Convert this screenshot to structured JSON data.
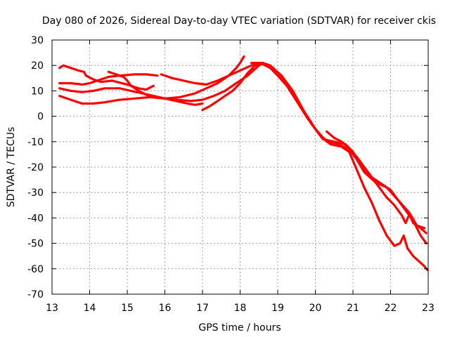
{
  "chart_data": {
    "type": "line",
    "title": "Day 080 of 2026, Sidereal Day-to-day VTEC variation (SDTVAR) for receiver ckis",
    "xlabel": "GPS time / hours",
    "ylabel": "SDTVAR / TECUs",
    "xlim": [
      13,
      23
    ],
    "ylim": [
      -70,
      30
    ],
    "xticks": [
      "13",
      "14",
      "15",
      "16",
      "17",
      "18",
      "19",
      "20",
      "21",
      "22",
      "23"
    ],
    "yticks": [
      "30",
      "20",
      "10",
      "0",
      "-10",
      "-20",
      "-30",
      "-40",
      "-50",
      "-60",
      "-70"
    ],
    "grid": true,
    "color": "#ff0000",
    "series": [
      {
        "name": "track-1",
        "points": [
          [
            13.2,
            19
          ],
          [
            13.3,
            20
          ],
          [
            13.5,
            19
          ],
          [
            13.7,
            18
          ],
          [
            13.85,
            17.5
          ],
          [
            13.9,
            16
          ],
          [
            14.1,
            14.5
          ],
          [
            14.3,
            13.5
          ],
          [
            14.6,
            14
          ],
          [
            15.0,
            12.5
          ],
          [
            15.3,
            11
          ],
          [
            15.5,
            10.5
          ],
          [
            15.7,
            12
          ]
        ]
      },
      {
        "name": "track-2",
        "points": [
          [
            13.2,
            13
          ],
          [
            13.5,
            13
          ],
          [
            13.8,
            12.5
          ],
          [
            14.0,
            13
          ],
          [
            14.3,
            14.5
          ],
          [
            14.5,
            15.5
          ],
          [
            14.8,
            16
          ],
          [
            15.2,
            16.5
          ],
          [
            15.5,
            16.5
          ],
          [
            15.8,
            16
          ]
        ]
      },
      {
        "name": "track-3",
        "points": [
          [
            13.2,
            11
          ],
          [
            13.5,
            10
          ],
          [
            13.8,
            9.5
          ],
          [
            14.1,
            10
          ],
          [
            14.4,
            11
          ],
          [
            14.8,
            11
          ],
          [
            15.1,
            10
          ],
          [
            15.4,
            9
          ],
          [
            15.7,
            8
          ],
          [
            16.0,
            7
          ],
          [
            16.3,
            6.5
          ],
          [
            16.7,
            6
          ],
          [
            17.0,
            6.5
          ],
          [
            17.3,
            8
          ],
          [
            17.6,
            10
          ],
          [
            17.9,
            13
          ],
          [
            18.2,
            16
          ],
          [
            18.5,
            20
          ]
        ]
      },
      {
        "name": "track-4",
        "points": [
          [
            13.2,
            8
          ],
          [
            13.5,
            6.5
          ],
          [
            13.8,
            5
          ],
          [
            14.1,
            5
          ],
          [
            14.4,
            5.5
          ],
          [
            14.8,
            6.5
          ],
          [
            15.2,
            7
          ],
          [
            15.6,
            7.5
          ],
          [
            16.0,
            7
          ],
          [
            16.4,
            7.5
          ],
          [
            16.8,
            9
          ],
          [
            17.1,
            11
          ],
          [
            17.4,
            13
          ],
          [
            17.7,
            16
          ],
          [
            17.9,
            19
          ],
          [
            18.0,
            21
          ],
          [
            18.1,
            23.5
          ]
        ]
      },
      {
        "name": "track-5",
        "points": [
          [
            14.5,
            17.5
          ],
          [
            14.7,
            16.5
          ],
          [
            14.9,
            15.5
          ],
          [
            15.0,
            14
          ],
          [
            15.1,
            12
          ],
          [
            15.3,
            10
          ],
          [
            15.5,
            8.5
          ],
          [
            15.7,
            7.5
          ],
          [
            16.0,
            7
          ],
          [
            16.3,
            6
          ],
          [
            16.6,
            5
          ],
          [
            16.8,
            4.5
          ],
          [
            17.0,
            5
          ]
        ]
      },
      {
        "name": "track-6",
        "points": [
          [
            15.9,
            16.5
          ],
          [
            16.2,
            15
          ],
          [
            16.5,
            14
          ],
          [
            16.8,
            13
          ],
          [
            17.1,
            12.5
          ],
          [
            17.4,
            14
          ],
          [
            17.7,
            16
          ],
          [
            18.0,
            18
          ],
          [
            18.3,
            20
          ],
          [
            18.6,
            21
          ],
          [
            18.8,
            20
          ],
          [
            19.1,
            16
          ],
          [
            19.4,
            10
          ],
          [
            19.7,
            2
          ],
          [
            20.0,
            -5
          ],
          [
            20.3,
            -10
          ],
          [
            20.6,
            -11
          ],
          [
            20.9,
            -13
          ],
          [
            21.1,
            -17
          ],
          [
            21.3,
            -22
          ],
          [
            21.6,
            -26
          ],
          [
            21.9,
            -28
          ],
          [
            22.2,
            -33
          ],
          [
            22.5,
            -38
          ],
          [
            22.7,
            -43
          ],
          [
            22.9,
            -44
          ]
        ]
      },
      {
        "name": "track-7",
        "points": [
          [
            17.0,
            2.5
          ],
          [
            17.2,
            4
          ],
          [
            17.4,
            6
          ],
          [
            17.6,
            8
          ],
          [
            17.8,
            10
          ],
          [
            18.0,
            13
          ],
          [
            18.2,
            17
          ],
          [
            18.4,
            20
          ],
          [
            18.6,
            20.5
          ],
          [
            18.8,
            19
          ],
          [
            19.0,
            16
          ],
          [
            19.3,
            11
          ],
          [
            19.6,
            4
          ],
          [
            19.9,
            -3
          ],
          [
            20.2,
            -9
          ],
          [
            20.5,
            -10
          ],
          [
            20.8,
            -11
          ],
          [
            21.0,
            -14
          ],
          [
            21.2,
            -19
          ],
          [
            21.4,
            -23
          ],
          [
            21.7,
            -26
          ],
          [
            22.0,
            -29
          ],
          [
            22.3,
            -35
          ],
          [
            22.6,
            -41
          ],
          [
            22.8,
            -47
          ],
          [
            22.95,
            -50
          ]
        ]
      },
      {
        "name": "track-8",
        "points": [
          [
            18.3,
            21
          ],
          [
            18.6,
            21
          ],
          [
            18.9,
            18
          ],
          [
            19.2,
            13
          ],
          [
            19.5,
            6
          ],
          [
            19.8,
            -1
          ],
          [
            20.1,
            -7
          ],
          [
            20.4,
            -11
          ],
          [
            20.7,
            -12
          ],
          [
            20.9,
            -14
          ],
          [
            21.1,
            -21
          ],
          [
            21.3,
            -28
          ],
          [
            21.5,
            -34
          ],
          [
            21.7,
            -41
          ],
          [
            21.9,
            -47
          ],
          [
            22.1,
            -51
          ],
          [
            22.25,
            -50
          ],
          [
            22.35,
            -47
          ],
          [
            22.45,
            -52
          ],
          [
            22.6,
            -55
          ],
          [
            22.75,
            -57
          ],
          [
            22.9,
            -59
          ],
          [
            22.98,
            -60.5
          ]
        ]
      },
      {
        "name": "track-9",
        "points": [
          [
            20.3,
            -6
          ],
          [
            20.5,
            -8.5
          ],
          [
            20.7,
            -10
          ],
          [
            20.9,
            -12.5
          ],
          [
            21.1,
            -16
          ],
          [
            21.3,
            -20
          ],
          [
            21.5,
            -24
          ],
          [
            21.7,
            -28
          ],
          [
            21.9,
            -32
          ],
          [
            22.1,
            -35
          ],
          [
            22.3,
            -39
          ],
          [
            22.4,
            -42
          ],
          [
            22.5,
            -38.5
          ],
          [
            22.6,
            -42
          ],
          [
            22.8,
            -44
          ],
          [
            22.95,
            -46
          ]
        ]
      }
    ]
  }
}
